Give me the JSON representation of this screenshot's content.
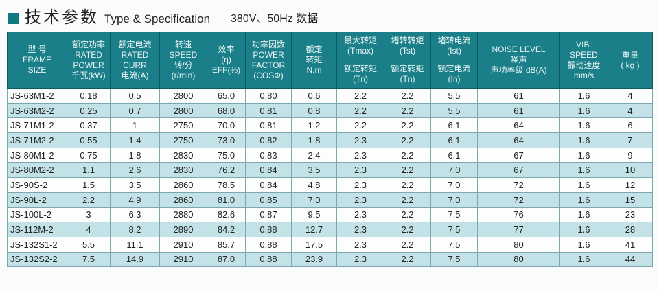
{
  "title": {
    "cn": "技术参数",
    "en": "Type & Specification",
    "sub": "380V、50Hz 数据"
  },
  "headers": {
    "frame": [
      "型 号",
      "FRAME",
      "SIZE"
    ],
    "power": [
      "额定功率",
      "RATED",
      "POWER",
      "千瓦(kW)"
    ],
    "curr": [
      "额定电流",
      "RATED",
      "CURR",
      "电流(A)"
    ],
    "speed": [
      "转速",
      "SPEED",
      "转/分",
      "(r/min)"
    ],
    "eff": [
      "效率",
      "(η)",
      "EFF(%)"
    ],
    "pf": [
      "功率因数",
      "POWER",
      "FACTOR",
      "(COSΦ)"
    ],
    "torque": [
      "额定",
      "转矩",
      "N.m"
    ],
    "tmax_top": [
      "最大转矩",
      "(Tmax)"
    ],
    "tmax_bot": [
      "额定转矩",
      "(Tn)"
    ],
    "tst_top": [
      "堵转转矩",
      "(Tst)"
    ],
    "tst_bot": [
      "额定转矩",
      "(Tn)"
    ],
    "ist_top": [
      "堵转电流",
      "(Ist)"
    ],
    "ist_bot": [
      "额定电流",
      "(In)"
    ],
    "noise": [
      "NOISE LEVEL",
      "噪声",
      "声功率级 dB(A)"
    ],
    "vib": [
      "VIB.",
      "SPEED",
      "振动速度",
      "mm/s"
    ],
    "weight": [
      "重量",
      "( kg )"
    ]
  },
  "rows": [
    [
      "JS-63M1-2",
      "0.18",
      "0.5",
      "2800",
      "65.0",
      "0.80",
      "0.6",
      "2.2",
      "2.2",
      "5.5",
      "61",
      "1.6",
      "4"
    ],
    [
      "JS-63M2-2",
      "0.25",
      "0.7",
      "2800",
      "68.0",
      "0.81",
      "0.8",
      "2.2",
      "2.2",
      "5.5",
      "61",
      "1.6",
      "4"
    ],
    [
      "JS-71M1-2",
      "0.37",
      "1",
      "2750",
      "70.0",
      "0.81",
      "1.2",
      "2.2",
      "2.2",
      "6.1",
      "64",
      "1.6",
      "6"
    ],
    [
      "JS-71M2-2",
      "0.55",
      "1.4",
      "2750",
      "73.0",
      "0.82",
      "1.8",
      "2.3",
      "2.2",
      "6.1",
      "64",
      "1.6",
      "7"
    ],
    [
      "JS-80M1-2",
      "0.75",
      "1.8",
      "2830",
      "75.0",
      "0.83",
      "2.4",
      "2.3",
      "2.2",
      "6.1",
      "67",
      "1.6",
      "9"
    ],
    [
      "JS-80M2-2",
      "1.1",
      "2.6",
      "2830",
      "76.2",
      "0.84",
      "3.5",
      "2.3",
      "2.2",
      "7.0",
      "67",
      "1.6",
      "10"
    ],
    [
      "JS-90S-2",
      "1.5",
      "3.5",
      "2860",
      "78.5",
      "0.84",
      "4.8",
      "2.3",
      "2.2",
      "7.0",
      "72",
      "1.6",
      "12"
    ],
    [
      "JS-90L-2",
      "2.2",
      "4.9",
      "2860",
      "81.0",
      "0.85",
      "7.0",
      "2.3",
      "2.2",
      "7.0",
      "72",
      "1.6",
      "15"
    ],
    [
      "JS-100L-2",
      "3",
      "6.3",
      "2880",
      "82.6",
      "0.87",
      "9.5",
      "2.3",
      "2.2",
      "7.5",
      "76",
      "1.6",
      "23"
    ],
    [
      "JS-112M-2",
      "4",
      "8.2",
      "2890",
      "84.2",
      "0.88",
      "12.7",
      "2.3",
      "2.2",
      "7.5",
      "77",
      "1.6",
      "28"
    ],
    [
      "JS-132S1-2",
      "5.5",
      "11.1",
      "2910",
      "85.7",
      "0.88",
      "17.5",
      "2.3",
      "2.2",
      "7.5",
      "80",
      "1.6",
      "41"
    ],
    [
      "JS-132S2-2",
      "7.5",
      "14.9",
      "2910",
      "87.0",
      "0.88",
      "23.9",
      "2.3",
      "2.2",
      "7.5",
      "80",
      "1.6",
      "44"
    ]
  ]
}
